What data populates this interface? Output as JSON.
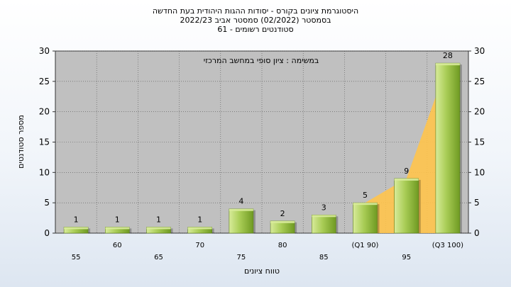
{
  "title_lines": [
    "היסטוגרמת ציונים בקורס - יסודות ההגות היהודית בעת החדשה",
    "בסמסטר  (02/2022)  סמסטר אביב 2022/23",
    "סטודנטים רשומים - 61"
  ],
  "colors": {
    "plot_bg": "#c0c0c0",
    "bar_light": "#d8eb9a",
    "bar_mid": "#a8cc55",
    "bar_dark": "#6f9a22",
    "area_fill": "#ffc44d",
    "grid": "#555555"
  },
  "chart_data": {
    "type": "bar",
    "title": "היסטוגרמת ציונים בקורס - יסודות ההגות היהודית בעת החדשה",
    "xlabel": "טווח ציונים",
    "ylabel": "מספר סטודנטים",
    "ylim": [
      0,
      30
    ],
    "yticks": [
      0,
      5,
      10,
      15,
      20,
      25,
      30
    ],
    "grid": true,
    "categories": [
      "55",
      "60",
      "65",
      "70",
      "75",
      "80",
      "85",
      "(Q1 90)",
      "95",
      "(Q3 100)"
    ],
    "values": [
      1,
      1,
      1,
      1,
      4,
      2,
      3,
      5,
      9,
      28
    ],
    "data_labels": [
      "1",
      "1",
      "1",
      "1",
      "4",
      "2",
      "3",
      "5",
      "9",
      "28"
    ],
    "highlight_area": {
      "from_index": 7,
      "to_index": 9
    },
    "annotation": "במשימה : ציון סופי במחשב המרכזי"
  }
}
